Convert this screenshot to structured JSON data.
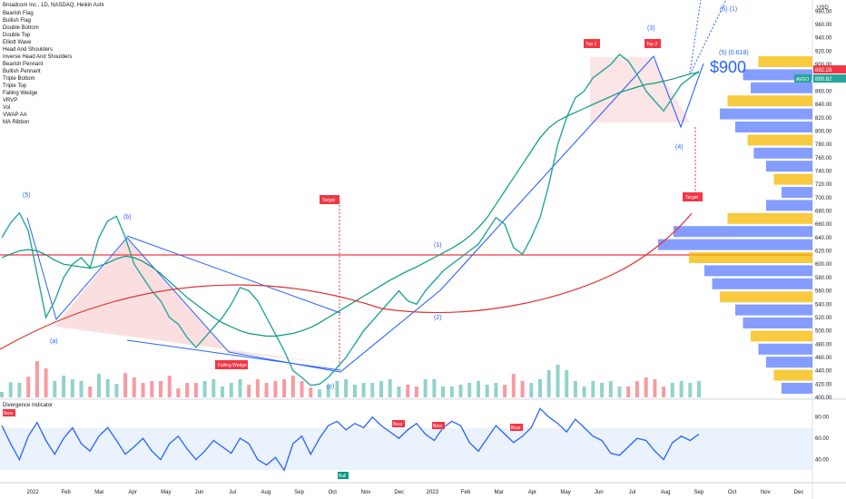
{
  "header": {
    "title": "Broadcom Inc., 1D, NASDAQ, Heikin Ashi",
    "currency": "USD"
  },
  "indicators_list": [
    "Bearish Flag",
    "Bullish Flag",
    "Double Bottom",
    "Double Top",
    "Elliott Wave",
    "Head And Shoulders",
    "Inverse Head And Shoulders",
    "Bearish Pennant",
    "Bullish Pennant",
    "Triple Bottom",
    "Triple Top",
    "Falling Wedge",
    "VRVP",
    "Vol",
    "VWAP AA",
    "MA Ribbon"
  ],
  "price_badges": [
    {
      "value": "892.28",
      "color": "#f23645"
    },
    {
      "value": "890.62",
      "color": "#26a69a"
    }
  ],
  "symbol_tag": "AVGO",
  "annotations": {
    "big_label": "$900",
    "wave_5_1": "(5) (1)",
    "wave_5_618": "(5) (0.618)",
    "wave_3": "(3)",
    "wave_4": "(4)",
    "wave_5_left": "(5)",
    "wave_b": "(b)",
    "wave_a": "(a)",
    "wave_c": "(c)",
    "wave_1": "(1)",
    "wave_2": "(2)",
    "top1": "Top 1",
    "top2": "Top 2",
    "target_left": "Target",
    "target_right": "Target",
    "falling_wedge": "Falling Wedge",
    "bear": "Bear",
    "bull": "Bull"
  },
  "divergence": {
    "title": "Divergence Indicator",
    "y_ticks": [
      "80.00",
      "60.00",
      "40.00"
    ]
  },
  "chart_data": [
    {
      "type": "line",
      "title": "Broadcom Inc., 1D, NASDAQ, Heikin Ashi",
      "x_labels": [
        "2022",
        "Feb",
        "Mar",
        "Apr",
        "May",
        "Jun",
        "Jul",
        "Aug",
        "Sep",
        "Oct",
        "Nov",
        "Dec",
        "2023",
        "Feb",
        "Mar",
        "Apr",
        "May",
        "Jun",
        "Jul",
        "Aug",
        "Sep",
        "Oct",
        "Nov",
        "Dec"
      ],
      "y_ticks": [
        980,
        960,
        940,
        920,
        900,
        880,
        860,
        840,
        820,
        800,
        780,
        760,
        740,
        720,
        700,
        680,
        660,
        640,
        620,
        600,
        580,
        560,
        540,
        520,
        500,
        480,
        460,
        440,
        420,
        400
      ],
      "ylim": [
        400,
        990
      ],
      "series": [
        {
          "values": [
            640,
            662,
            677,
            650,
            585,
            520,
            545,
            580,
            600,
            610,
            595,
            640,
            665,
            672,
            640,
            600,
            580,
            560,
            545,
            520,
            510,
            490,
            475,
            490,
            505,
            520,
            540,
            565,
            560,
            545,
            520,
            495,
            470,
            440,
            430,
            418,
            420,
            430,
            445,
            460,
            480,
            500,
            515,
            530,
            545,
            560,
            545,
            540,
            560,
            575,
            590,
            600,
            610,
            620,
            630,
            650,
            670,
            660,
            625,
            615,
            640,
            670,
            720,
            780,
            820,
            850,
            860,
            880,
            890,
            900,
            915,
            905,
            885,
            860,
            845,
            830,
            850,
            870,
            880,
            890
          ]
        },
        {
          "name": "MA Ribbon",
          "values": [
            610,
            615,
            620,
            622,
            620,
            614,
            606,
            600,
            598,
            596,
            594,
            597,
            602,
            608,
            612,
            610,
            604,
            596,
            586,
            574,
            562,
            550,
            540,
            530,
            520,
            512,
            506,
            500,
            496,
            494,
            492,
            492,
            494,
            496,
            500,
            505,
            512,
            520,
            528,
            536,
            544,
            552,
            560,
            568,
            576,
            583,
            590,
            596,
            603,
            610,
            617,
            624,
            632,
            642,
            655,
            670,
            690,
            710,
            730,
            750,
            770,
            790,
            805,
            815,
            822,
            828,
            834,
            840,
            846,
            852,
            858,
            862,
            866,
            870,
            872,
            875,
            878,
            882,
            886,
            888
          ]
        }
      ]
    },
    {
      "type": "line",
      "title": "Divergence Indicator",
      "y_ticks": [
        80,
        60,
        40
      ],
      "ylim": [
        20,
        90
      ],
      "values": [
        72,
        55,
        40,
        62,
        75,
        58,
        45,
        60,
        70,
        55,
        48,
        62,
        70,
        58,
        45,
        52,
        60,
        48,
        40,
        55,
        62,
        50,
        40,
        48,
        58,
        52,
        46,
        60,
        55,
        40,
        35,
        42,
        30,
        55,
        62,
        45,
        60,
        72,
        76,
        68,
        74,
        70,
        80,
        72,
        66,
        60,
        68,
        74,
        64,
        58,
        70,
        76,
        72,
        56,
        48,
        60,
        72,
        64,
        56,
        62,
        70,
        88,
        80,
        74,
        66,
        78,
        70,
        62,
        58,
        46,
        44,
        52,
        60,
        58,
        48,
        40,
        56,
        62,
        58,
        64
      ]
    }
  ]
}
